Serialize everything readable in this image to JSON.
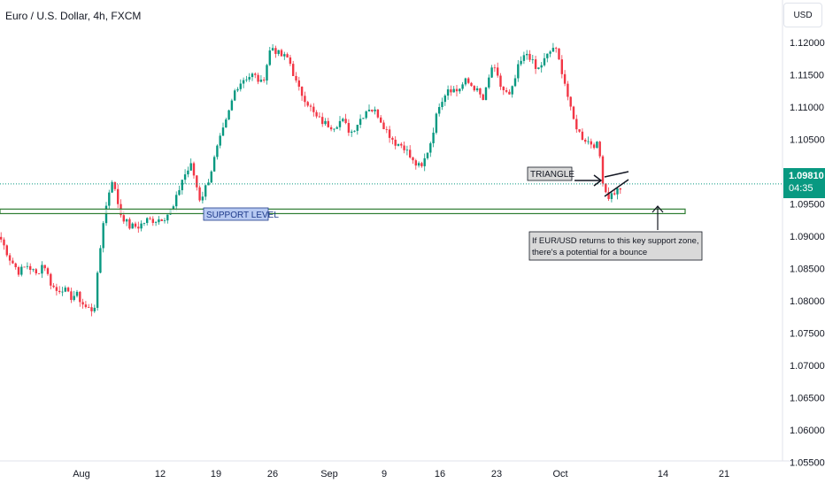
{
  "header": {
    "title": "Euro / U.S. Dollar, 4h, FXCM",
    "currency_button": "USD"
  },
  "last_price": {
    "price": "1.09810",
    "countdown": "04:35",
    "color": "#089981"
  },
  "colors": {
    "up": "#089981",
    "down": "#f23645",
    "support": "#2e7d32",
    "support_fill": "#ffffff"
  },
  "annotations": {
    "support_label": "SUPPORT LEVEL",
    "triangle_label": "TRIANGLE",
    "note_line1": "If EUR/USD returns to this key support zone,",
    "note_line2": "there's a potential for a bounce"
  },
  "chart_data": {
    "type": "candlestick",
    "title": "Euro / U.S. Dollar, 4h, FXCM",
    "y_axis_ticks": [
      "1.12000",
      "1.11500",
      "1.11000",
      "1.10500",
      "1.10000",
      "1.09500",
      "1.09000",
      "1.08500",
      "1.08000",
      "1.07500",
      "1.07000",
      "1.06500",
      "1.06000",
      "1.05500"
    ],
    "x_axis_ticks": [
      "Aug",
      "12",
      "19",
      "26",
      "Sep",
      "9",
      "16",
      "23",
      "Oct",
      "14",
      "21"
    ],
    "ylim": [
      1.0515,
      1.1245
    ],
    "support_zone": [
      1.0935,
      1.0942
    ],
    "close_anchors": [
      [
        0,
        1.0895
      ],
      [
        10,
        1.0865
      ],
      [
        20,
        1.0845
      ],
      [
        30,
        1.0855
      ],
      [
        40,
        1.084
      ],
      [
        48,
        1.086
      ],
      [
        55,
        1.083
      ],
      [
        62,
        1.0815
      ],
      [
        70,
        1.082
      ],
      [
        78,
        1.0805
      ],
      [
        85,
        1.081
      ],
      [
        95,
        1.079
      ],
      [
        105,
        1.0785
      ],
      [
        115,
        1.092
      ],
      [
        125,
        1.099
      ],
      [
        135,
        1.0935
      ],
      [
        145,
        1.0915
      ],
      [
        155,
        1.0915
      ],
      [
        165,
        1.0925
      ],
      [
        175,
        1.0925
      ],
      [
        185,
        1.093
      ],
      [
        195,
        1.0945
      ],
      [
        205,
        1.099
      ],
      [
        215,
        1.101
      ],
      [
        225,
        1.0955
      ],
      [
        235,
        1.099
      ],
      [
        245,
        1.104
      ],
      [
        255,
        1.108
      ],
      [
        265,
        1.113
      ],
      [
        275,
        1.1145
      ],
      [
        285,
        1.115
      ],
      [
        295,
        1.1135
      ],
      [
        305,
        1.1195
      ],
      [
        315,
        1.118
      ],
      [
        325,
        1.1175
      ],
      [
        335,
        1.113
      ],
      [
        345,
        1.111
      ],
      [
        355,
        1.1085
      ],
      [
        365,
        1.1075
      ],
      [
        375,
        1.107
      ],
      [
        385,
        1.108
      ],
      [
        395,
        1.106
      ],
      [
        405,
        1.108
      ],
      [
        415,
        1.11
      ],
      [
        425,
        1.109
      ],
      [
        435,
        1.1065
      ],
      [
        445,
        1.1045
      ],
      [
        455,
        1.104
      ],
      [
        465,
        1.1015
      ],
      [
        475,
        1.1005
      ],
      [
        485,
        1.1045
      ],
      [
        495,
        1.1105
      ],
      [
        505,
        1.113
      ],
      [
        515,
        1.1125
      ],
      [
        525,
        1.114
      ],
      [
        535,
        1.113
      ],
      [
        545,
        1.111
      ],
      [
        555,
        1.1165
      ],
      [
        565,
        1.113
      ],
      [
        575,
        1.1115
      ],
      [
        585,
        1.1165
      ],
      [
        595,
        1.1185
      ],
      [
        605,
        1.1155
      ],
      [
        615,
        1.1175
      ],
      [
        625,
        1.1195
      ],
      [
        635,
        1.115
      ],
      [
        645,
        1.1085
      ],
      [
        655,
        1.1055
      ],
      [
        665,
        1.1045
      ],
      [
        675,
        1.104
      ],
      [
        680,
        1.0985
      ],
      [
        685,
        1.096
      ],
      [
        690,
        1.0965
      ],
      [
        695,
        1.097
      ],
      [
        700,
        1.0975
      ]
    ]
  }
}
